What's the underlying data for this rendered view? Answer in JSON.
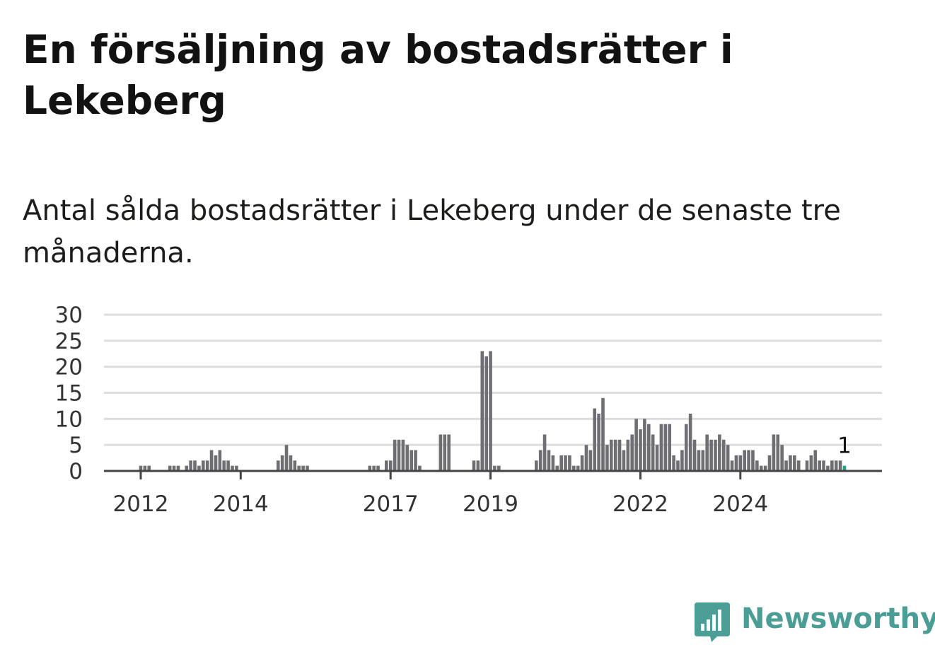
{
  "title": "En försäljning av bostadsrätter i Lekeberg",
  "subtitle": "Antal sålda bostadsrätter i Lekeberg under de senaste tre månaderna.",
  "logo": {
    "text": "Newsworthy",
    "icon": "chart-speech-bubble-icon",
    "color": "#4a9e95"
  },
  "colors": {
    "bar": "#6e6e73",
    "highlight": "#2a9d8f",
    "grid": "#dddddd",
    "axis": "#444444"
  },
  "chart_data": {
    "type": "bar",
    "start": "2011-04",
    "frequency": "monthly",
    "ylim": [
      0,
      30
    ],
    "yticks": [
      "0",
      "5",
      "10",
      "15",
      "20",
      "25",
      "30"
    ],
    "xticks": [
      "2012",
      "2014",
      "2017",
      "2019",
      "2022",
      "2024"
    ],
    "grid": true,
    "values": [
      0,
      0,
      0,
      0,
      0,
      0,
      0,
      0,
      0,
      1,
      1,
      1,
      0,
      0,
      0,
      0,
      1,
      1,
      1,
      0,
      1,
      2,
      2,
      1,
      2,
      2,
      4,
      3,
      4,
      2,
      2,
      1,
      1,
      0,
      0,
      0,
      0,
      0,
      0,
      0,
      0,
      0,
      2,
      3,
      5,
      3,
      2,
      1,
      1,
      1,
      0,
      0,
      0,
      0,
      0,
      0,
      0,
      0,
      0,
      0,
      0,
      0,
      0,
      0,
      1,
      1,
      1,
      0,
      2,
      2,
      6,
      6,
      6,
      5,
      4,
      4,
      1,
      0,
      0,
      0,
      0,
      7,
      7,
      7,
      0,
      0,
      0,
      0,
      0,
      2,
      2,
      23,
      22,
      23,
      1,
      1,
      0,
      0,
      0,
      0,
      0,
      0,
      0,
      0,
      2,
      4,
      7,
      4,
      3,
      1,
      3,
      3,
      3,
      1,
      1,
      3,
      5,
      4,
      12,
      11,
      14,
      5,
      6,
      6,
      6,
      4,
      6,
      7,
      10,
      8,
      10,
      9,
      7,
      5,
      9,
      9,
      9,
      3,
      2,
      4,
      9,
      11,
      6,
      4,
      4,
      7,
      6,
      6,
      7,
      6,
      5,
      2,
      3,
      3,
      4,
      4,
      4,
      2,
      1,
      1,
      3,
      7,
      7,
      5,
      2,
      3,
      3,
      2,
      0,
      2,
      3,
      4,
      2,
      2,
      1,
      2,
      2,
      2,
      1
    ],
    "highlight_last": true,
    "annotation": "1"
  }
}
